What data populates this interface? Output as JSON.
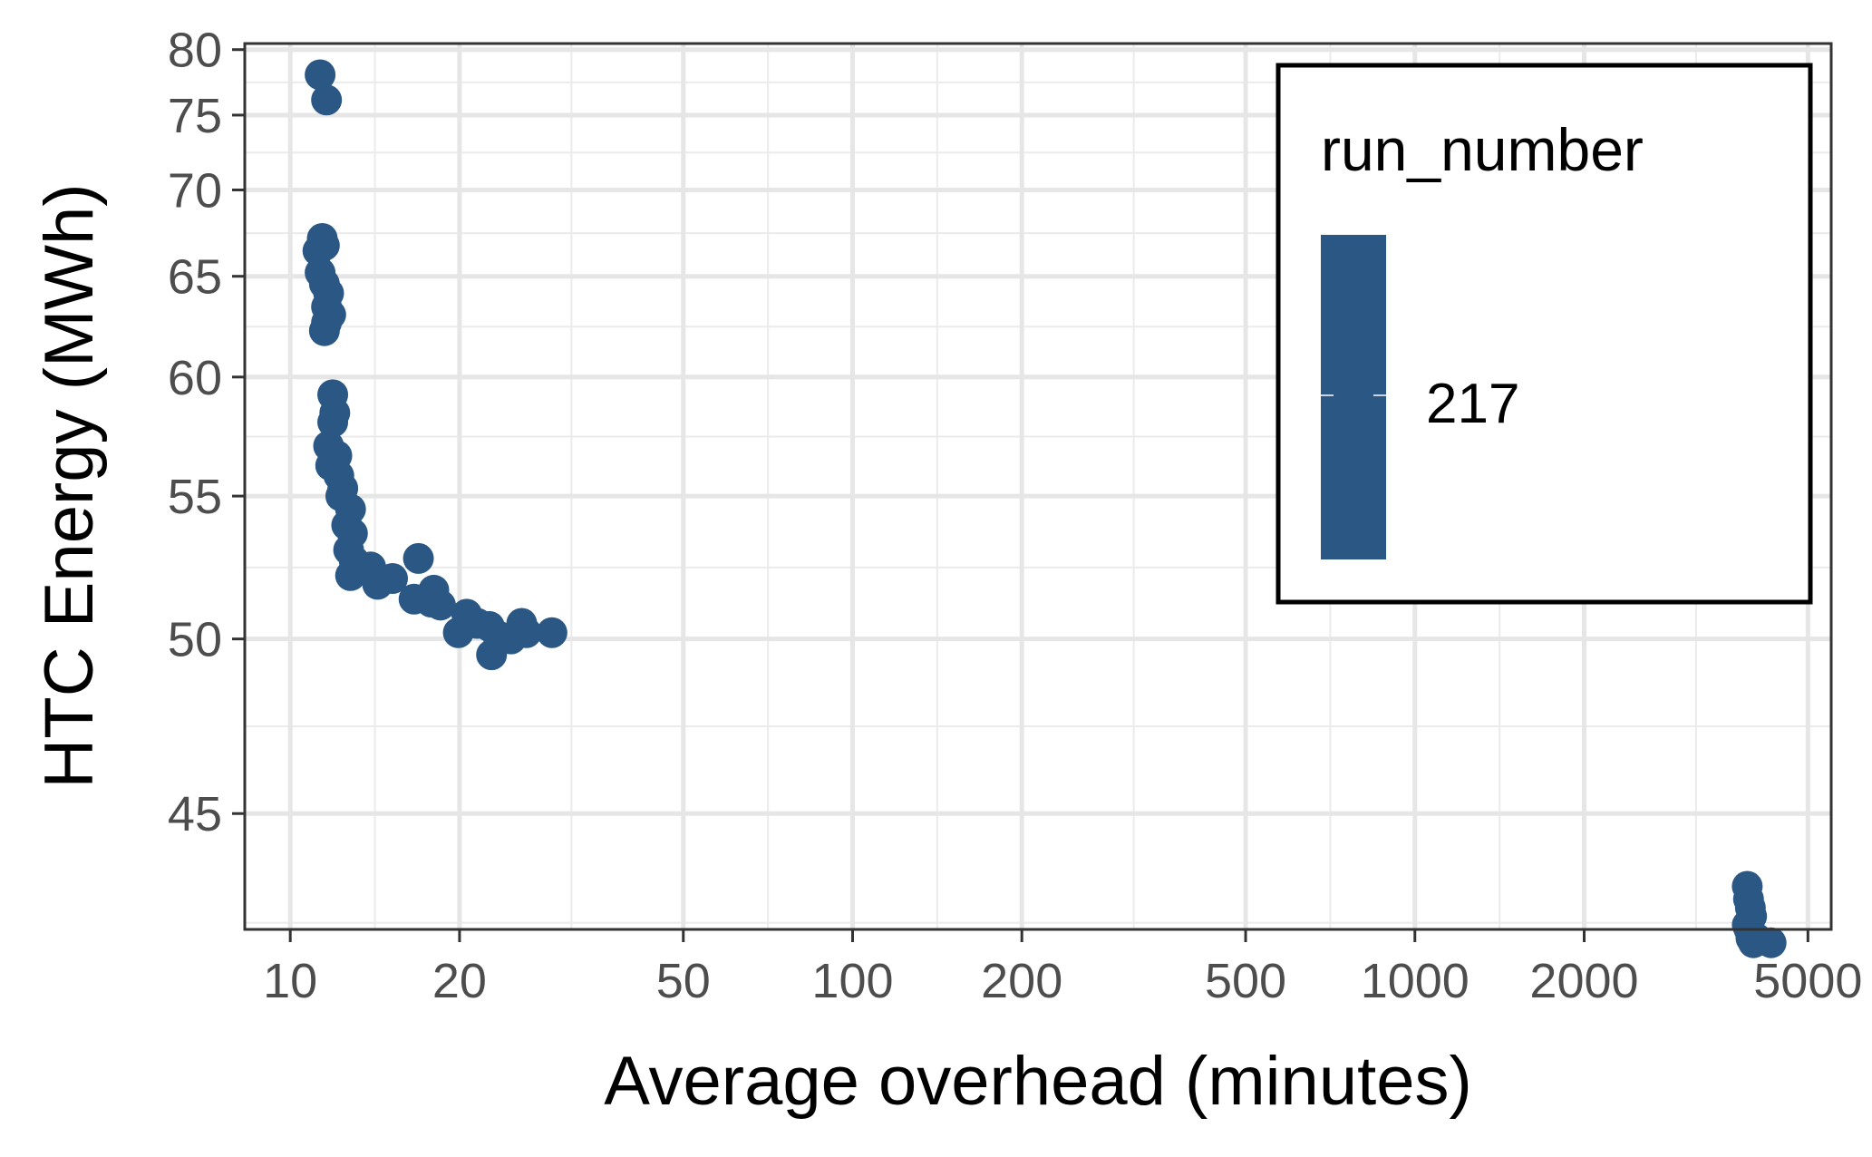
{
  "chart_data": {
    "type": "scatter",
    "xlabel": "Average overhead (minutes)",
    "ylabel": "HTC Energy (MWh)",
    "x_scale": "log10",
    "y_scale": "reciprocal",
    "xlim": [
      8.3,
      5500
    ],
    "ylim": [
      42.2,
      80.5
    ],
    "x_ticks": [
      10,
      20,
      50,
      100,
      200,
      500,
      1000,
      2000,
      5000
    ],
    "x_tick_labels": [
      "10",
      "20",
      "50",
      "100",
      "200",
      "500",
      "1000",
      "2000",
      "5000"
    ],
    "y_ticks": [
      45,
      50,
      55,
      60,
      65,
      70,
      75,
      80
    ],
    "y_tick_labels": [
      "45",
      "50",
      "55",
      "60",
      "65",
      "70",
      "75",
      "80"
    ],
    "grid": true,
    "legend": {
      "title": "run_number",
      "placement": "top-right",
      "entries": [
        {
          "label": "217",
          "color": "#2a5783"
        }
      ]
    },
    "point_color": "#2a5783",
    "series": [
      {
        "name": "217",
        "x": [
          11.3,
          11.6,
          11.2,
          11.4,
          11.5,
          11.3,
          11.5,
          11.7,
          11.6,
          11.8,
          11.6,
          11.5,
          11.9,
          12.0,
          11.9,
          11.7,
          12.1,
          11.8,
          12.2,
          12.4,
          12.3,
          12.8,
          12.6,
          12.9,
          12.7,
          13.0,
          12.8,
          13.9,
          14.3,
          15.2,
          16.9,
          16.6,
          17.8,
          18.0,
          18.5,
          19.9,
          20.6,
          21.5,
          22.6,
          22.8,
          23.4,
          24.7,
          25.8,
          26.3,
          29.2,
          3900,
          3920,
          3950,
          3970,
          3900,
          3930,
          3960,
          4000,
          4050,
          4300
        ],
        "y": [
          78.0,
          76.1,
          66.4,
          67.1,
          66.7,
          65.2,
          64.6,
          64.1,
          63.4,
          63.0,
          62.6,
          62.2,
          59.2,
          58.4,
          58.0,
          57.0,
          56.6,
          56.2,
          55.8,
          55.3,
          55.0,
          54.5,
          53.9,
          53.6,
          53.0,
          52.6,
          52.1,
          52.4,
          51.8,
          52.0,
          52.7,
          51.3,
          51.2,
          51.6,
          51.1,
          50.2,
          50.8,
          50.5,
          50.4,
          49.5,
          50.1,
          50.0,
          50.5,
          50.2,
          50.2,
          43.2,
          42.9,
          42.7,
          42.5,
          42.3,
          42.2,
          42.0,
          41.9,
          42.0,
          41.9
        ]
      }
    ]
  }
}
